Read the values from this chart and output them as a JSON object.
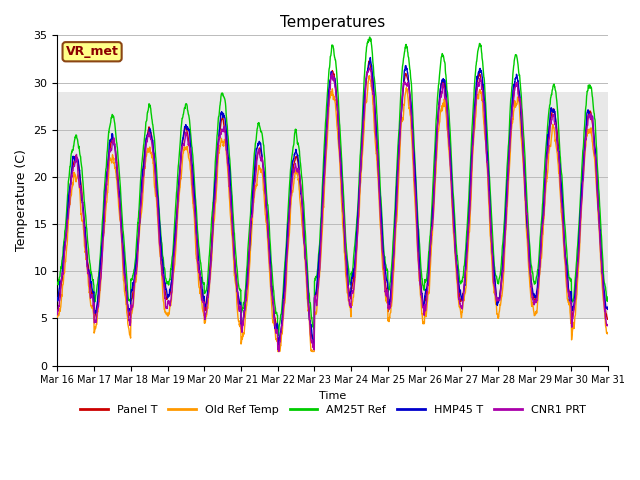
{
  "title": "Temperatures",
  "xlabel": "Time",
  "ylabel": "Temperature (C)",
  "ylim": [
    0,
    35
  ],
  "yticks": [
    0,
    5,
    10,
    15,
    20,
    25,
    30,
    35
  ],
  "xtick_labels": [
    "Mar 16",
    "Mar 17",
    "Mar 18",
    "Mar 19",
    "Mar 20",
    "Mar 21",
    "Mar 22",
    "Mar 23",
    "Mar 24",
    "Mar 25",
    "Mar 26",
    "Mar 27",
    "Mar 28",
    "Mar 29",
    "Mar 30",
    "Mar 31"
  ],
  "legend_station": "VR_met",
  "legend_entries": [
    {
      "label": "Panel T",
      "color": "#cc0000"
    },
    {
      "label": "Old Ref Temp",
      "color": "#ff9900"
    },
    {
      "label": "AM25T Ref",
      "color": "#00cc00"
    },
    {
      "label": "HMP45 T",
      "color": "#0000cc"
    },
    {
      "label": "CNR1 PRT",
      "color": "#aa00aa"
    }
  ],
  "shaded_band": [
    5,
    29
  ],
  "shaded_color": "#e8e8e8",
  "background_color": "#ffffff",
  "grid_color": "#bbbbbb",
  "n_days": 15,
  "pts_per_day": 144,
  "day_maxes": [
    22,
    24,
    25,
    25,
    26,
    23,
    22,
    31,
    32,
    31,
    30,
    31,
    30,
    27,
    27
  ],
  "day_mins": [
    7,
    5,
    7,
    7,
    6,
    4,
    2,
    7,
    8,
    6,
    7,
    7,
    7,
    7,
    5
  ],
  "figsize": [
    6.4,
    4.8
  ],
  "dpi": 100
}
